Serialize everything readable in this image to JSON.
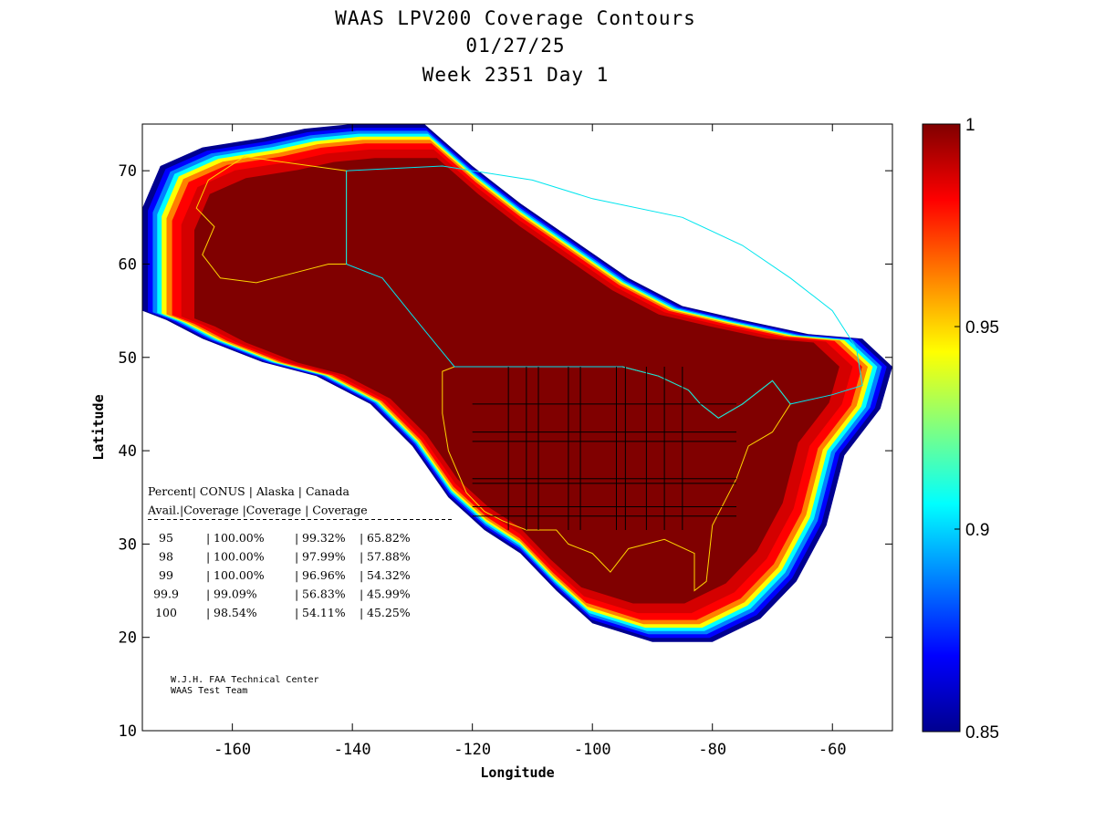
{
  "chart_data": {
    "type": "heatmap",
    "title_lines": [
      "WAAS LPV200 Coverage Contours",
      "01/27/25",
      "Week 2351 Day 1"
    ],
    "xlabel": "Longitude",
    "ylabel": "Latitude",
    "xlim": [
      -175,
      -50
    ],
    "ylim": [
      10,
      75
    ],
    "xticks": [
      -160,
      -140,
      -120,
      -100,
      -80,
      -60
    ],
    "yticks": [
      10,
      20,
      30,
      40,
      50,
      60,
      70
    ],
    "colorbar": {
      "range": [
        0.85,
        1
      ],
      "ticks": [
        0.85,
        0.9,
        0.95,
        1
      ],
      "tick_labels": [
        "0.85",
        "0.9",
        "0.95",
        "1"
      ],
      "colormap": [
        "#00008f",
        "#0000ff",
        "#0080ff",
        "#00ffff",
        "#80ff80",
        "#ffff00",
        "#ff8000",
        "#ff0000",
        "#800000"
      ]
    },
    "coverage_table": {
      "header1": [
        "Percent",
        "CONUS",
        "Alaska",
        "Canada"
      ],
      "header2": [
        "Avail.",
        "Coverage",
        "Coverage",
        "Coverage"
      ],
      "rows": [
        {
          "percent": "95",
          "conus": "100.00%",
          "alaska": "99.32%",
          "canada": "65.82%"
        },
        {
          "percent": "98",
          "conus": "100.00%",
          "alaska": "97.99%",
          "canada": "57.88%"
        },
        {
          "percent": "99",
          "conus": "100.00%",
          "alaska": "96.96%",
          "canada": "54.32%"
        },
        {
          "percent": "99.9",
          "conus": "99.09%",
          "alaska": "56.83%",
          "canada": "45.99%"
        },
        {
          "percent": "100",
          "conus": "98.54%",
          "alaska": "54.11%",
          "canada": "45.25%"
        }
      ]
    },
    "credits": [
      "W.J.H. FAA Technical Center",
      "WAAS Test Team"
    ],
    "coverage_outline": [
      [
        -175,
        66
      ],
      [
        -172,
        70.5
      ],
      [
        -165,
        72.5
      ],
      [
        -155,
        73.5
      ],
      [
        -148,
        74.5
      ],
      [
        -140,
        75
      ],
      [
        -128,
        75
      ],
      [
        -120,
        70.5
      ],
      [
        -112,
        66.5
      ],
      [
        -103,
        62.5
      ],
      [
        -94,
        58.5
      ],
      [
        -85,
        55.5
      ],
      [
        -75,
        54
      ],
      [
        -64,
        52.5
      ],
      [
        -55,
        52
      ],
      [
        -50,
        49
      ],
      [
        -52,
        44.5
      ],
      [
        -58,
        39.5
      ],
      [
        -61,
        32
      ],
      [
        -66,
        26
      ],
      [
        -72,
        22
      ],
      [
        -80,
        19.5
      ],
      [
        -90,
        19.5
      ],
      [
        -100,
        21.5
      ],
      [
        -106,
        25
      ],
      [
        -112,
        29
      ],
      [
        -118,
        31.5
      ],
      [
        -124,
        35
      ],
      [
        -130,
        40.5
      ],
      [
        -137,
        45
      ],
      [
        -146,
        48
      ],
      [
        -155,
        49.5
      ],
      [
        -165,
        52
      ],
      [
        -171,
        54
      ],
      [
        -175,
        55
      ]
    ],
    "service_regions": [
      {
        "name": "Alaska",
        "color": "#ffd400",
        "points": [
          [
            -141,
            70
          ],
          [
            -158,
            71.5
          ],
          [
            -164,
            69
          ],
          [
            -166,
            66
          ],
          [
            -163,
            64
          ],
          [
            -165,
            61
          ],
          [
            -162,
            58.5
          ],
          [
            -156,
            58
          ],
          [
            -150,
            59
          ],
          [
            -144,
            60
          ],
          [
            -141,
            60
          ]
        ]
      },
      {
        "name": "CONUS",
        "color": "#ffd400",
        "points": [
          [
            -125,
            48.5
          ],
          [
            -123,
            49
          ],
          [
            -95,
            49
          ],
          [
            -89,
            48
          ],
          [
            -84,
            46.5
          ],
          [
            -82,
            45
          ],
          [
            -79,
            43.5
          ],
          [
            -75,
            45
          ],
          [
            -70,
            47.5
          ],
          [
            -67,
            45
          ],
          [
            -70,
            42
          ],
          [
            -74,
            40.5
          ],
          [
            -76,
            37
          ],
          [
            -80,
            32
          ],
          [
            -81,
            26
          ],
          [
            -83,
            25
          ],
          [
            -83,
            29
          ],
          [
            -88,
            30.5
          ],
          [
            -94,
            29.5
          ],
          [
            -97,
            27
          ],
          [
            -100,
            29
          ],
          [
            -104,
            30
          ],
          [
            -106,
            31.5
          ],
          [
            -111,
            31.5
          ],
          [
            -115,
            32.5
          ],
          [
            -118,
            33.5
          ],
          [
            -121,
            35.5
          ],
          [
            -124,
            40
          ],
          [
            -125,
            44
          ]
        ]
      },
      {
        "name": "Canada",
        "color": "#00e5ee",
        "points": [
          [
            -141,
            70
          ],
          [
            -125,
            70.5
          ],
          [
            -110,
            69
          ],
          [
            -100,
            67
          ],
          [
            -85,
            65
          ],
          [
            -75,
            62
          ],
          [
            -67,
            58.5
          ],
          [
            -60,
            55
          ],
          [
            -56,
            51
          ],
          [
            -55,
            47
          ],
          [
            -60,
            46
          ],
          [
            -67,
            45
          ],
          [
            -70,
            47.5
          ],
          [
            -75,
            45
          ],
          [
            -79,
            43.5
          ],
          [
            -82,
            45
          ],
          [
            -84,
            46.5
          ],
          [
            -89,
            48
          ],
          [
            -95,
            49
          ],
          [
            -123,
            49
          ],
          [
            -130,
            54.5
          ],
          [
            -135,
            58.5
          ],
          [
            -141,
            60
          ]
        ]
      }
    ]
  }
}
